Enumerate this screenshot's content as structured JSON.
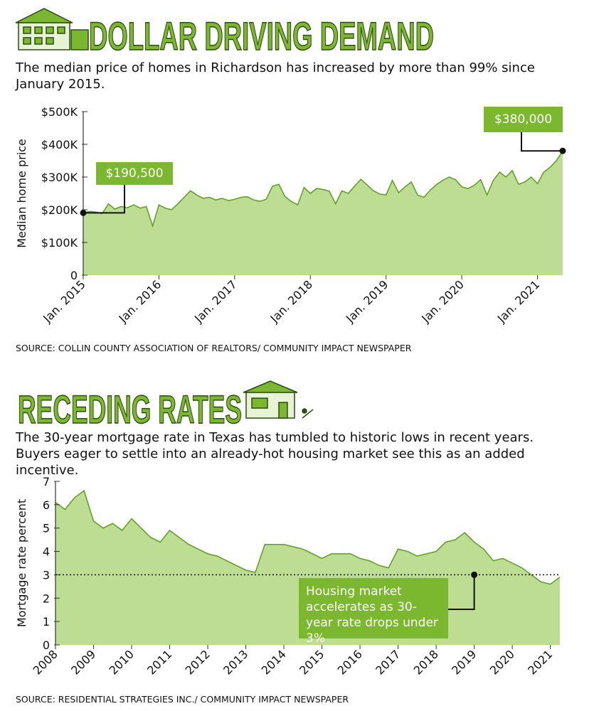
{
  "chart_data": [
    {
      "type": "area",
      "title": "DOLLAR DRIVING DEMAND",
      "subtitle": "The median price of homes in Richardson has increased by more than 99% since January 2015.",
      "ylabel": "Median home price",
      "x": [
        "2015-01",
        "2015-02",
        "2015-03",
        "2015-04",
        "2015-05",
        "2015-06",
        "2015-07",
        "2015-08",
        "2015-09",
        "2015-10",
        "2015-11",
        "2015-12",
        "2016-01",
        "2016-02",
        "2016-03",
        "2016-04",
        "2016-05",
        "2016-06",
        "2016-07",
        "2016-08",
        "2016-09",
        "2016-10",
        "2016-11",
        "2016-12",
        "2017-01",
        "2017-02",
        "2017-03",
        "2017-04",
        "2017-05",
        "2017-06",
        "2017-07",
        "2017-08",
        "2017-09",
        "2017-10",
        "2017-11",
        "2017-12",
        "2018-01",
        "2018-02",
        "2018-03",
        "2018-04",
        "2018-05",
        "2018-06",
        "2018-07",
        "2018-08",
        "2018-09",
        "2018-10",
        "2018-11",
        "2018-12",
        "2019-01",
        "2019-02",
        "2019-03",
        "2019-04",
        "2019-05",
        "2019-06",
        "2019-07",
        "2019-08",
        "2019-09",
        "2019-10",
        "2019-11",
        "2019-12",
        "2020-01",
        "2020-02",
        "2020-03",
        "2020-04",
        "2020-05",
        "2020-06",
        "2020-07",
        "2020-08",
        "2020-09",
        "2020-10",
        "2020-11",
        "2020-12",
        "2021-01",
        "2021-02",
        "2021-03",
        "2021-04",
        "2021-05"
      ],
      "values": [
        190500,
        195000,
        193000,
        188000,
        218000,
        202000,
        210000,
        206000,
        215000,
        205000,
        210000,
        150000,
        215000,
        205000,
        200000,
        218000,
        238000,
        258000,
        245000,
        235000,
        238000,
        230000,
        235000,
        228000,
        232000,
        238000,
        240000,
        230000,
        226000,
        232000,
        272000,
        278000,
        240000,
        225000,
        215000,
        268000,
        250000,
        265000,
        262000,
        257000,
        218000,
        258000,
        250000,
        272000,
        293000,
        276000,
        258000,
        248000,
        245000,
        290000,
        252000,
        270000,
        285000,
        245000,
        238000,
        260000,
        277000,
        290000,
        300000,
        292000,
        270000,
        265000,
        275000,
        292000,
        245000,
        290000,
        315000,
        300000,
        320000,
        278000,
        285000,
        300000,
        280000,
        315000,
        330000,
        350000,
        380000
      ],
      "color": "#5c9e22",
      "fill": "#bddd92",
      "xlim": [
        "2015-01",
        "2021-05"
      ],
      "ylim": [
        0,
        500000
      ],
      "yticks": [
        0,
        {
          "value": 100000,
          "label": "$100K"
        },
        {
          "value": 200000,
          "label": "$200K"
        },
        {
          "value": 300000,
          "label": "$300K"
        },
        {
          "value": 400000,
          "label": "$400K"
        },
        {
          "value": 500000,
          "label": "$500K"
        }
      ],
      "xticks": [
        {
          "value": "2015-01",
          "label": "Jan. 2015"
        },
        {
          "value": "2016-01",
          "label": "Jan. 2016"
        },
        {
          "value": "2017-01",
          "label": "Jan. 2017"
        },
        {
          "value": "2018-01",
          "label": "Jan. 2018"
        },
        {
          "value": "2019-01",
          "label": "Jan. 2019"
        },
        {
          "value": "2020-01",
          "label": "Jan. 2020"
        },
        {
          "value": "2021-01",
          "label": "Jan. 2021"
        }
      ],
      "annotations": [
        {
          "text": "$190,500",
          "x": "2015-01",
          "y": 190500
        },
        {
          "text": "$380,000",
          "x": "2021-05",
          "y": 380000
        }
      ],
      "source": "SOURCE: COLLIN COUNTY ASSOCIATION OF REALTORS/ COMMUNITY IMPACT NEWSPAPER"
    },
    {
      "type": "area",
      "title": "RECEDING RATES",
      "subtitle": "The 30-year mortgage rate in Texas has tumbled to historic lows in recent years. Buyers eager to settle into an already-hot housing market see this as an added incentive.",
      "ylabel": "Mortgage rate percent",
      "x": [
        2008,
        2008.25,
        2008.5,
        2008.75,
        2009,
        2009.25,
        2009.5,
        2009.75,
        2010,
        2010.25,
        2010.5,
        2010.75,
        2011,
        2011.25,
        2011.5,
        2011.75,
        2012,
        2012.25,
        2012.5,
        2012.75,
        2013,
        2013.25,
        2013.5,
        2013.75,
        2014,
        2014.25,
        2014.5,
        2014.75,
        2015,
        2015.25,
        2015.5,
        2015.75,
        2016,
        2016.25,
        2016.5,
        2016.75,
        2017,
        2017.25,
        2017.5,
        2017.75,
        2018,
        2018.25,
        2018.5,
        2018.75,
        2019,
        2019.25,
        2019.5,
        2019.75,
        2020,
        2020.25,
        2020.5,
        2020.75,
        2021,
        2021.25
      ],
      "values": [
        6.1,
        5.8,
        6.3,
        6.6,
        5.3,
        5.0,
        5.2,
        4.9,
        5.4,
        5.0,
        4.6,
        4.4,
        4.9,
        4.6,
        4.3,
        4.1,
        3.9,
        3.8,
        3.6,
        3.4,
        3.2,
        3.1,
        4.3,
        4.3,
        4.3,
        4.2,
        4.1,
        3.9,
        3.7,
        3.9,
        3.9,
        3.9,
        3.7,
        3.6,
        3.4,
        3.3,
        4.1,
        4.0,
        3.8,
        3.9,
        4.0,
        4.4,
        4.5,
        4.8,
        4.4,
        4.1,
        3.6,
        3.7,
        3.5,
        3.3,
        3.0,
        2.7,
        2.6,
        2.9
      ],
      "color": "#5c9e22",
      "fill": "#bddd92",
      "xlim": [
        2008,
        2021.25
      ],
      "ylim": [
        0,
        7
      ],
      "yticks": [
        0,
        1,
        2,
        3,
        4,
        5,
        6,
        7
      ],
      "xticks": [
        2008,
        2009,
        2010,
        2011,
        2012,
        2013,
        2014,
        2015,
        2016,
        2017,
        2018,
        2019,
        2020,
        2021
      ],
      "hline": 3,
      "annotations": [
        {
          "text": "Housing market accelerates as 30-year rate drops under 3%",
          "x": 2019,
          "y": 3
        }
      ],
      "source": "SOURCE: RESIDENTIAL STRATEGIES INC./ COMMUNITY IMPACT NEWSPAPER"
    }
  ]
}
